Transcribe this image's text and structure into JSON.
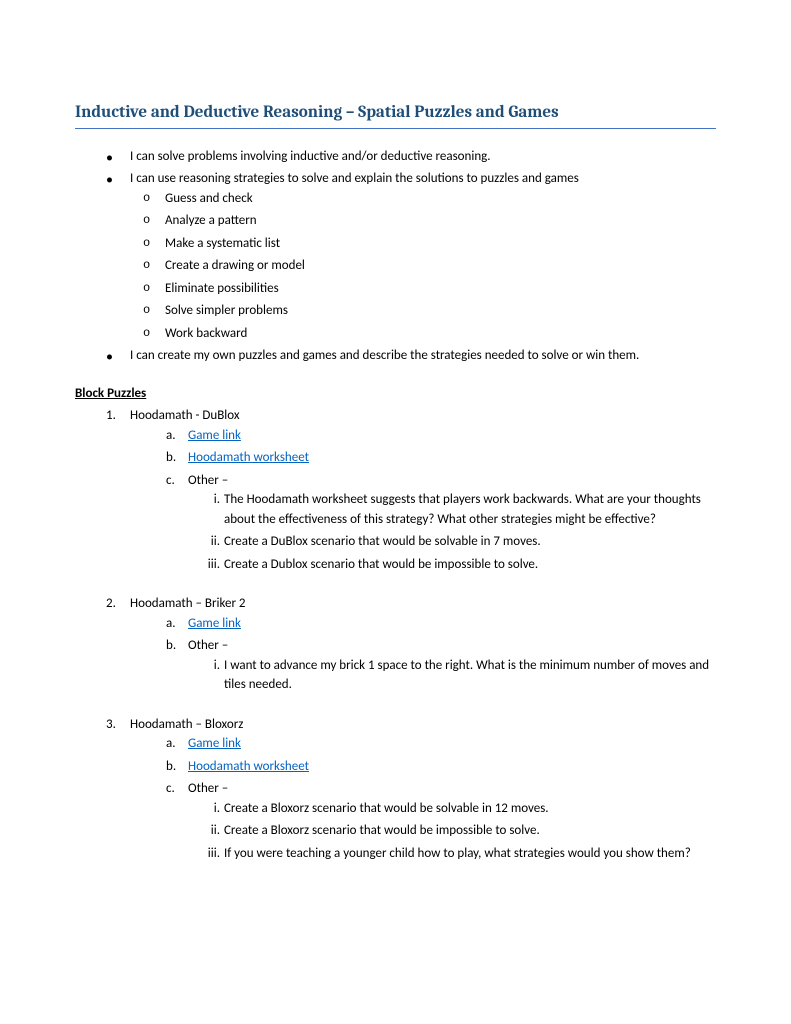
{
  "title": "Inductive and Deductive Reasoning – Spatial Puzzles and Games",
  "colors": {
    "title": "#1f4e79",
    "title_border": "#4472c4",
    "link": "#0563c1",
    "body_text": "#000000",
    "background": "#ffffff"
  },
  "fonts": {
    "title_family": "Cambria",
    "title_size_pt": 13,
    "body_family": "Calibri",
    "body_size_pt": 10
  },
  "objectives": {
    "item1": "I can solve problems involving inductive and/or deductive reasoning.",
    "item2": "I can use reasoning strategies to solve and explain the solutions to puzzles and games",
    "strategies": {
      "s1": "Guess and check",
      "s2": "Analyze a pattern",
      "s3": "Make a systematic list",
      "s4": "Create a drawing or model",
      "s5": "Eliminate possibilities",
      "s6": "Solve simpler problems",
      "s7": "Work backward"
    },
    "item3": "I can create my own puzzles and games and describe the strategies needed to solve or win them."
  },
  "section_heading": "Block Puzzles",
  "puzzles": {
    "p1": {
      "num": "1.",
      "title": "Hoodamath - DuBlox",
      "a_label": "a.",
      "a_text": "Game link",
      "b_label": "b.",
      "b_text": "Hoodamath worksheet",
      "c_label": "c.",
      "c_text": "Other –",
      "c_i_label": "i.",
      "c_i_text": "The Hoodamath worksheet suggests that players work backwards.  What are your thoughts about the effectiveness of this strategy?  What other strategies might be effective?",
      "c_ii_label": "ii.",
      "c_ii_text": "Create a DuBlox scenario that would be solvable in 7 moves.",
      "c_iii_label": "iii.",
      "c_iii_text": "Create a Dublox scenario that would be impossible to solve."
    },
    "p2": {
      "num": "2.",
      "title": "Hoodamath – Briker 2",
      "a_label": "a.",
      "a_text": "Game link",
      "b_label": "b.",
      "b_text": "Other –",
      "b_i_label": "i.",
      "b_i_text": "I want to advance my brick 1 space to the right.  What is the minimum number of moves and tiles needed."
    },
    "p3": {
      "num": "3.",
      "title": "Hoodamath – Bloxorz",
      "a_label": "a.",
      "a_text": "Game link",
      "b_label": "b.",
      "b_text": "Hoodamath worksheet",
      "c_label": "c.",
      "c_text": "Other –",
      "c_i_label": "i.",
      "c_i_text": "Create a Bloxorz scenario that would be solvable in 12 moves.",
      "c_ii_label": "ii.",
      "c_ii_text": "Create a Bloxorz scenario that would be impossible to solve.",
      "c_iii_label": "iii.",
      "c_iii_text": "If you were teaching a younger child how to play, what strategies would you show them?"
    }
  }
}
